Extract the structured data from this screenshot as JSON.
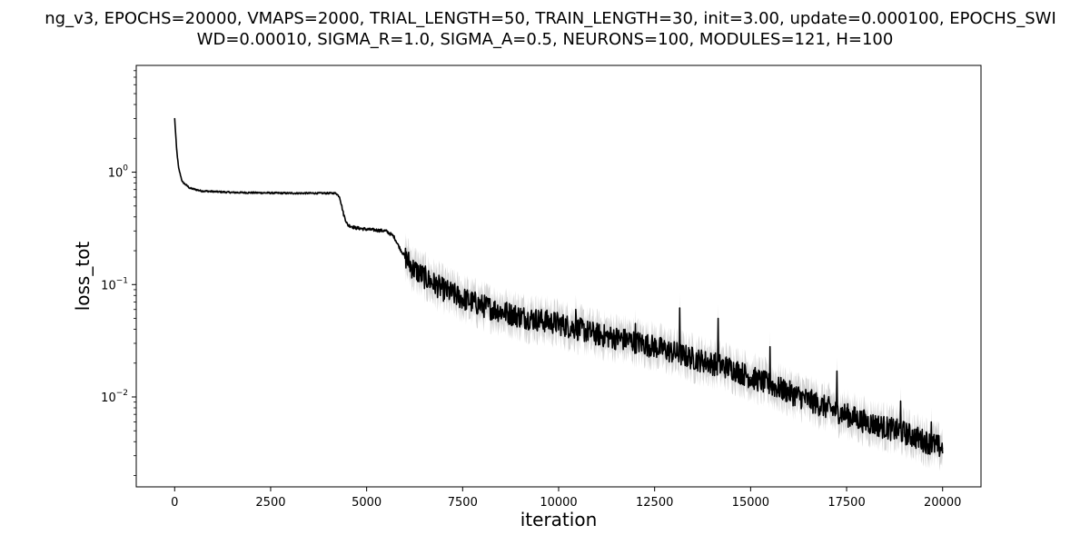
{
  "chart_data": {
    "type": "line",
    "title": {
      "line1": "ng_v3, EPOCHS=20000, VMAPS=2000, TRIAL_LENGTH=50, TRAIN_LENGTH=30, init=3.00, update=0.000100, EPOCHS_SWI",
      "line2": "WD=0.00010, SIGMA_R=1.0, SIGMA_A=0.5, NEURONS=100, MODULES=121, H=100"
    },
    "xlabel": "iteration",
    "ylabel": "loss_tot",
    "xlim": [
      -1000,
      21000
    ],
    "ylim_log10": [
      -2.8,
      0.95
    ],
    "yscale": "log",
    "x_ticks": [
      0,
      2500,
      5000,
      7500,
      10000,
      12500,
      15000,
      17500,
      20000
    ],
    "y_ticks": [
      {
        "label": "10",
        "exp": "0",
        "value": 1
      },
      {
        "label": "10",
        "exp": "−1",
        "value": 0.1
      },
      {
        "label": "10",
        "exp": "−2",
        "value": 0.01
      }
    ],
    "grid": false,
    "series": [
      {
        "color": "#000000",
        "band_color": "#d3d3d3",
        "points": [
          [
            0,
            3.0
          ],
          [
            50,
            1.6
          ],
          [
            100,
            1.1
          ],
          [
            200,
            0.82
          ],
          [
            400,
            0.72
          ],
          [
            700,
            0.68
          ],
          [
            1500,
            0.66
          ],
          [
            3000,
            0.65
          ],
          [
            4200,
            0.65
          ],
          [
            4300,
            0.6
          ],
          [
            4400,
            0.42
          ],
          [
            4500,
            0.34
          ],
          [
            4700,
            0.32
          ],
          [
            5000,
            0.31
          ],
          [
            5500,
            0.3
          ],
          [
            5700,
            0.27
          ],
          [
            5900,
            0.2
          ],
          [
            6200,
            0.14
          ],
          [
            6600,
            0.11
          ],
          [
            7000,
            0.09
          ],
          [
            7500,
            0.075
          ],
          [
            8000,
            0.065
          ],
          [
            8500,
            0.058
          ],
          [
            9000,
            0.052
          ],
          [
            10000,
            0.045
          ],
          [
            11000,
            0.036
          ],
          [
            12000,
            0.031
          ],
          [
            12500,
            0.028
          ],
          [
            13500,
            0.022
          ],
          [
            14500,
            0.018
          ],
          [
            15000,
            0.015
          ],
          [
            16000,
            0.011
          ],
          [
            17000,
            0.008
          ],
          [
            18000,
            0.006
          ],
          [
            19000,
            0.0048
          ],
          [
            20000,
            0.0035
          ]
        ],
        "spikes": [
          [
            10450,
            0.06
          ],
          [
            13150,
            0.062
          ],
          [
            14150,
            0.05
          ],
          [
            12000,
            0.045
          ],
          [
            15500,
            0.028
          ],
          [
            17250,
            0.017
          ],
          [
            18900,
            0.0092
          ],
          [
            19700,
            0.006
          ]
        ],
        "noise_rel": 0.3
      }
    ]
  }
}
